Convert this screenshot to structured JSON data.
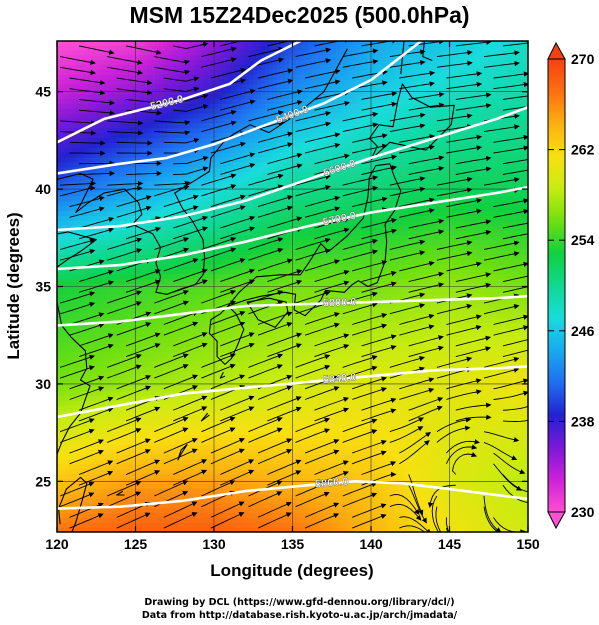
{
  "title": "MSM 15Z24Dec2025 (500.0hPa)",
  "xlabel": "Longitude (degrees)",
  "ylabel": "Latitude  (degrees)",
  "credits": {
    "line1": "Drawing by DCL (https://www.gfd-dennou.org/library/dcl/)",
    "line2": "Data from http://database.rish.kyoto-u.ac.jp/arch/jmadata/"
  },
  "chart_data": {
    "type": "heatmap",
    "title": "MSM 15Z24Dec2025 (500.0hPa)",
    "xlabel": "Longitude (degrees)",
    "ylabel": "Latitude  (degrees)",
    "xlim": [
      120,
      150
    ],
    "ylim": [
      22.4,
      47.6
    ],
    "xticks": [
      120,
      125,
      130,
      135,
      140,
      145,
      150
    ],
    "yticks": [
      25,
      30,
      35,
      40,
      45
    ],
    "grid": true,
    "colorbar": {
      "min": 230,
      "max": 270,
      "ticks": [
        230,
        238,
        246,
        254,
        262,
        270
      ],
      "colors": [
        "#ff4fd4",
        "#cc22d8",
        "#7a18d8",
        "#2222d0",
        "#1f6ef0",
        "#19aaf0",
        "#19dcdc",
        "#10d890",
        "#10d040",
        "#70e010",
        "#c8ec10",
        "#f8e010",
        "#fcb010",
        "#fc7010",
        "#f84010"
      ]
    },
    "temperature_field_K": {
      "lon": [
        120,
        125,
        130,
        135,
        140,
        145,
        150
      ],
      "lat": [
        47.5,
        45,
        40,
        35,
        30,
        25,
        22.5
      ],
      "values": [
        [
          230,
          231,
          235,
          240,
          244,
          246,
          248
        ],
        [
          233,
          235,
          238,
          243,
          246,
          248,
          249
        ],
        [
          241,
          244,
          247,
          250,
          251,
          252,
          252
        ],
        [
          253,
          254,
          255,
          256,
          256,
          257,
          256
        ],
        [
          256,
          257,
          258,
          259,
          260,
          260,
          261
        ],
        [
          263,
          265,
          265,
          264,
          263,
          260,
          258
        ],
        [
          267,
          268,
          268,
          267,
          264,
          261,
          259
        ]
      ]
    },
    "height_contours": [
      {
        "label": "5200.0",
        "lon": [
          120,
          123,
          126,
          128,
          131,
          133,
          135.5
        ],
        "lat": [
          42.4,
          43.6,
          44.2,
          44.6,
          45.4,
          46.6,
          47.6
        ]
      },
      {
        "label": "5400.0",
        "lon": [
          120,
          124,
          127,
          130,
          133,
          137,
          140,
          143.2
        ],
        "lat": [
          40.8,
          41.3,
          41.6,
          42.3,
          43.2,
          44.4,
          45.6,
          47.6
        ]
      },
      {
        "label": "5600.0",
        "lon": [
          120,
          124,
          128,
          132,
          136,
          140,
          144,
          148,
          150
        ],
        "lat": [
          37.9,
          38.1,
          38.6,
          39.4,
          40.5,
          41.6,
          42.6,
          43.6,
          44.2
        ]
      },
      {
        "label": "5700.0",
        "lon": [
          120,
          124,
          128,
          132,
          136,
          140,
          144,
          148,
          150
        ],
        "lat": [
          35.9,
          36.1,
          36.6,
          37.3,
          38.1,
          38.8,
          39.3,
          39.8,
          40.1
        ]
      },
      {
        "label": "5800.0",
        "lon": [
          120,
          124,
          128,
          132,
          136,
          140,
          144,
          148,
          150
        ],
        "lat": [
          33.0,
          33.2,
          33.6,
          34.0,
          34.1,
          34.2,
          34.3,
          34.4,
          34.5
        ]
      },
      {
        "label": "5840.0",
        "lon": [
          120,
          124,
          128,
          132,
          136,
          140,
          144,
          148,
          150
        ],
        "lat": [
          28.3,
          28.9,
          29.5,
          29.8,
          30.1,
          30.4,
          30.7,
          30.8,
          30.9
        ]
      },
      {
        "label": "5860.0",
        "lon": [
          120,
          124,
          128,
          132,
          136,
          139,
          142,
          146,
          150
        ],
        "lat": [
          23.6,
          23.7,
          24.0,
          24.5,
          24.8,
          25.0,
          24.9,
          24.5,
          24.1
        ]
      }
    ],
    "wind_pattern": "predominantly westerly to west-southwesterly flow; weak anticyclonic circulation near 146E 25N"
  }
}
